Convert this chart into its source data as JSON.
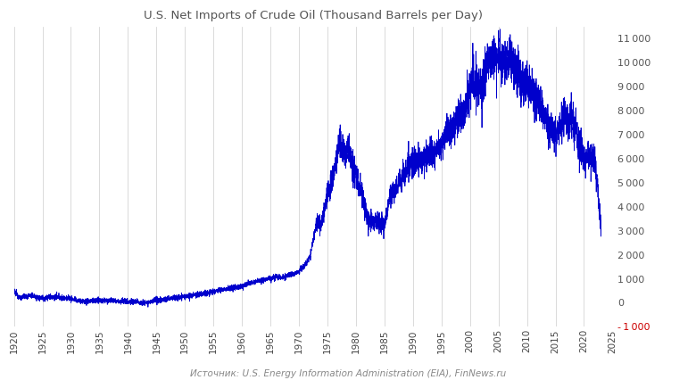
{
  "title": "U.S. Net Imports of Crude Oil (Thousand Barrels per Day)",
  "source_text": "Источник: U.S. Energy Information Administration (EIA), FinNews.ru",
  "line_color": "#0000cc",
  "background_color": "#ffffff",
  "grid_color_h": "#aaaaaa",
  "grid_color_v": "#cccccc",
  "title_color": "#555555",
  "source_color": "#888888",
  "ylim": [
    -1000,
    11500
  ],
  "xlim": [
    1920,
    2025
  ],
  "yticks_right": [
    -1000,
    0,
    1000,
    2000,
    3000,
    4000,
    5000,
    6000,
    7000,
    8000,
    9000,
    10000,
    11000
  ],
  "xticks": [
    1920,
    1925,
    1930,
    1935,
    1940,
    1945,
    1950,
    1955,
    1960,
    1965,
    1970,
    1975,
    1980,
    1985,
    1990,
    1995,
    2000,
    2005,
    2010,
    2015,
    2020,
    2025
  ],
  "key_years": [
    1920,
    1921,
    1922,
    1923,
    1924,
    1925,
    1926,
    1927,
    1928,
    1929,
    1930,
    1931,
    1932,
    1933,
    1934,
    1935,
    1936,
    1937,
    1938,
    1939,
    1940,
    1941,
    1942,
    1943,
    1944,
    1945,
    1946,
    1947,
    1948,
    1949,
    1950,
    1951,
    1952,
    1953,
    1954,
    1955,
    1956,
    1957,
    1958,
    1959,
    1960,
    1961,
    1962,
    1963,
    1964,
    1965,
    1966,
    1967,
    1968,
    1969,
    1970,
    1971,
    1972,
    1973,
    1974,
    1975,
    1976,
    1977,
    1978,
    1979,
    1980,
    1981,
    1982,
    1983,
    1984,
    1985,
    1986,
    1987,
    1988,
    1989,
    1990,
    1991,
    1992,
    1993,
    1994,
    1995,
    1996,
    1997,
    1998,
    1999,
    2000,
    2001,
    2002,
    2003,
    2004,
    2005,
    2006,
    2007,
    2008,
    2009,
    2010,
    2011,
    2012,
    2013,
    2014,
    2015,
    2016,
    2017,
    2018,
    2019,
    2020,
    2021,
    2022,
    2023
  ],
  "key_values": [
    480,
    220,
    260,
    310,
    230,
    200,
    220,
    230,
    215,
    210,
    180,
    100,
    50,
    65,
    85,
    85,
    82,
    95,
    60,
    70,
    55,
    35,
    25,
    22,
    28,
    85,
    125,
    155,
    205,
    225,
    255,
    290,
    330,
    370,
    410,
    460,
    510,
    560,
    615,
    660,
    710,
    790,
    860,
    910,
    960,
    1010,
    1060,
    1055,
    1110,
    1210,
    1320,
    1550,
    1940,
    3250,
    3350,
    4450,
    5250,
    6650,
    6150,
    6250,
    5350,
    4450,
    3520,
    3320,
    3420,
    3220,
    4530,
    4750,
    5130,
    5650,
    5950,
    5830,
    6050,
    6230,
    6350,
    6520,
    7050,
    7250,
    7650,
    8050,
    8950,
    9150,
    9050,
    9750,
    10150,
    10150,
    10050,
    10250,
    9850,
    9050,
    9150,
    8850,
    8550,
    7850,
    7250,
    7050,
    7450,
    7650,
    7650,
    6750,
    5850,
    6150,
    5750,
    3050
  ],
  "noise_scales": [
    60,
    60,
    60,
    60,
    60,
    60,
    60,
    60,
    60,
    60,
    60,
    60,
    60,
    60,
    60,
    60,
    60,
    60,
    60,
    60,
    60,
    60,
    60,
    60,
    60,
    60,
    60,
    60,
    60,
    60,
    60,
    60,
    60,
    60,
    60,
    60,
    60,
    60,
    60,
    60,
    60,
    60,
    60,
    60,
    60,
    60,
    60,
    60,
    60,
    60,
    80,
    80,
    100,
    200,
    200,
    250,
    300,
    350,
    350,
    350,
    300,
    250,
    200,
    200,
    200,
    200,
    250,
    250,
    300,
    300,
    350,
    300,
    300,
    300,
    300,
    350,
    400,
    400,
    400,
    450,
    500,
    500,
    500,
    500,
    550,
    550,
    500,
    500,
    500,
    450,
    450,
    450,
    400,
    400,
    350,
    350,
    400,
    400,
    400,
    350,
    300,
    350,
    350,
    200
  ]
}
